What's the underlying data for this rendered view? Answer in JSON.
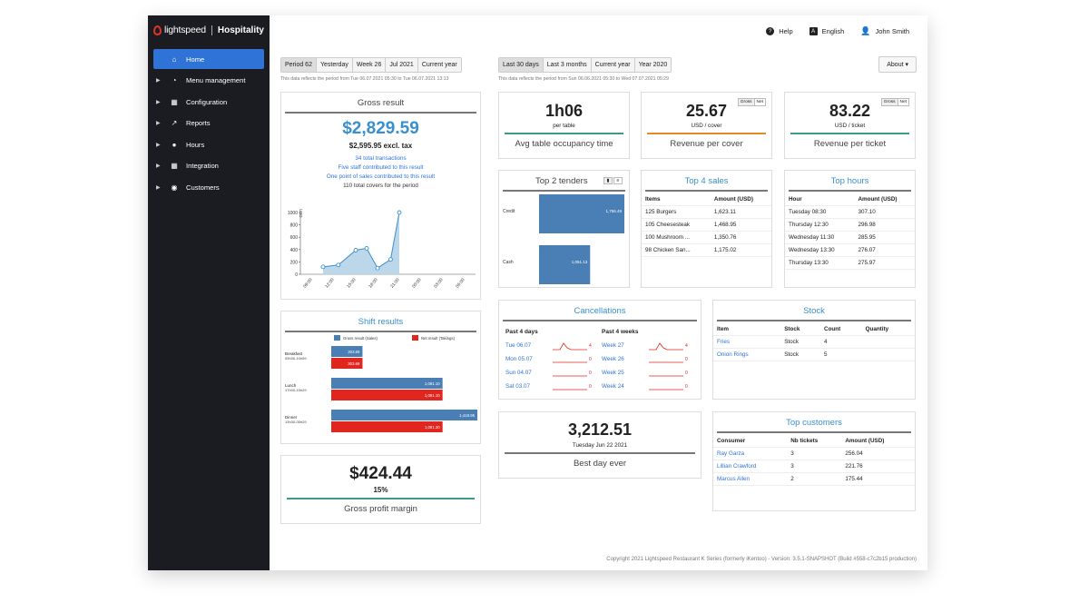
{
  "sidebar": {
    "brand": "lightspeed",
    "product": "Hospitality",
    "items": [
      {
        "label": "Home",
        "icon": "home-icon"
      },
      {
        "label": "Menu management",
        "icon": "pie-icon"
      },
      {
        "label": "Configuration",
        "icon": "grid-icon"
      },
      {
        "label": "Reports",
        "icon": "chart-icon"
      },
      {
        "label": "Hours",
        "icon": "clock-icon"
      },
      {
        "label": "Integration",
        "icon": "grid-icon"
      },
      {
        "label": "Customers",
        "icon": "user-circle-icon"
      }
    ]
  },
  "topbar": {
    "help": "Help",
    "language": "English",
    "user": "John Smith"
  },
  "left_periods": {
    "options": [
      "Period 62",
      "Yesterday",
      "Week 26",
      "Jul 2021",
      "Current year"
    ],
    "selected": "Period 62",
    "note": "This data reflects the period from Tue 06.07.2021 05:30 to Tue 06.07.2021 13:13"
  },
  "right_periods": {
    "options": [
      "Last 30 days",
      "Last 3 months",
      "Current year",
      "Year 2020"
    ],
    "selected": "Last 30 days",
    "note": "This data reflects the period from Sun 06.06.2021 05:30 to Wed 07.07.2021 05:29"
  },
  "about": "About ▾",
  "gross": {
    "title": "Gross result",
    "amount": "$2,829.59",
    "excl": "$2,595.95 excl. tax",
    "lines": [
      "34 total transactions",
      "Five staff contributed to this result",
      "One point of sales contributed to this result"
    ],
    "covers": "110 total covers for the period"
  },
  "chart_data": [
    {
      "type": "area",
      "ylabel": "USD",
      "ylim": [
        0,
        1000
      ],
      "yticks": [
        "1000",
        "800",
        "600",
        "400",
        "200",
        "0"
      ],
      "x": [
        "09:00",
        "12:00",
        "15:00",
        "18:00",
        "21:00",
        "00:00",
        "03:00",
        "06:00"
      ],
      "points": [
        [
          0.5,
          120
        ],
        [
          1.2,
          150
        ],
        [
          2.0,
          390
        ],
        [
          2.5,
          420
        ],
        [
          3.0,
          100
        ],
        [
          3.6,
          240
        ],
        [
          4.0,
          1000
        ]
      ]
    },
    {
      "type": "bar",
      "title": "Top 2 tenders",
      "categories": [
        "Credit",
        "Cash"
      ],
      "values": [
        1756.49,
        1051.13
      ],
      "labels": [
        "1,756.49",
        "1,051.13"
      ]
    },
    {
      "type": "bar",
      "title": "Shift results",
      "series": [
        {
          "name": "Gross result (Sales)",
          "values": [
            303.69,
            1081.1,
            1418.95
          ],
          "labels": [
            "303.69",
            "1,081.10",
            "1,418.95"
          ]
        },
        {
          "name": "Net result (Takings)",
          "values": [
            303.69,
            1081.1,
            1081.3
          ],
          "labels": [
            "303.69",
            "1,081.10",
            "1,081.30"
          ]
        }
      ],
      "categories": [
        {
          "name": "Breakfast",
          "time": "05h30-10h59"
        },
        {
          "name": "Lunch",
          "time": "17h00-15h29"
        },
        {
          "name": "Dinner",
          "time": "13h30-05h29"
        }
      ]
    }
  ],
  "margin": {
    "amount": "$424.44",
    "pct": "15%",
    "caption": "Gross profit margin"
  },
  "occupancy": {
    "value": "1h06",
    "unit": "per table",
    "caption": "Avg table occupancy time"
  },
  "cover": {
    "value": "25.67",
    "unit": "USD / cover",
    "caption": "Revenue per cover",
    "toggle": [
      "Gross",
      "Net"
    ]
  },
  "ticket": {
    "value": "83.22",
    "unit": "USD / ticket",
    "caption": "Revenue per ticket",
    "toggle": [
      "Gross",
      "Net"
    ]
  },
  "top_sales": {
    "title": "Top 4 sales",
    "headers": [
      "Items",
      "Amount (USD)"
    ],
    "rows": [
      [
        "125 Burgers",
        "1,623.11"
      ],
      [
        "105 Cheesesteak",
        "1,468.95"
      ],
      [
        "100 Mushroom ...",
        "1,350.76"
      ],
      [
        "98 Chicken San...",
        "1,175.02"
      ]
    ]
  },
  "top_hours": {
    "title": "Top hours",
    "headers": [
      "Hour",
      "Amount (USD)"
    ],
    "rows": [
      [
        "Tuesday 08:30",
        "307.10"
      ],
      [
        "Thursday 12:30",
        "296.98"
      ],
      [
        "Wednesday 11:30",
        "285.95"
      ],
      [
        "Wednesday 13:30",
        "276.07"
      ],
      [
        "Thursday 13:30",
        "275.97"
      ]
    ]
  },
  "cancellations": {
    "title": "Cancellations",
    "days_header": "Past 4 days",
    "weeks_header": "Past 4 weeks",
    "days": [
      [
        "Tue 06.07",
        "4"
      ],
      [
        "Mon 05.07",
        "0"
      ],
      [
        "Sun 04.07",
        "0"
      ],
      [
        "Sat 03.07",
        "0"
      ]
    ],
    "weeks": [
      [
        "Week 27",
        "4"
      ],
      [
        "Week 26",
        "0"
      ],
      [
        "Week 25",
        "0"
      ],
      [
        "Week 24",
        "0"
      ]
    ]
  },
  "stock": {
    "title": "Stock",
    "headers": [
      "Item",
      "Stock",
      "Count",
      "Quantity"
    ],
    "rows": [
      [
        "Fries",
        "Stock",
        "4",
        ""
      ],
      [
        "Onion Rings",
        "Stock",
        "5",
        ""
      ]
    ]
  },
  "best_day": {
    "value": "3,212.51",
    "date": "Tuesday Jun 22 2021",
    "caption": "Best day ever"
  },
  "top_customers": {
    "title": "Top customers",
    "headers": [
      "Consumer",
      "Nb tickets",
      "Amount (USD)"
    ],
    "rows": [
      [
        "Ray Garza",
        "3",
        "256.04"
      ],
      [
        "Lillian Crawford",
        "3",
        "221.76"
      ],
      [
        "Marcus Allen",
        "2",
        "175.44"
      ]
    ]
  },
  "footer": "Copyright 2021 Lightspeed Restaurant K Series (formerly iKentoo) - Version: 3.5.1-SNAPSHOT (Build #558-c7c2b15 production)",
  "colors": {
    "blue": "#3a8fcf",
    "bar_blue": "#4a7fb5",
    "bar_red": "#e0261f",
    "teal": "#3c9a8a",
    "orange": "#e08a2a",
    "sidebar": "#1b1c21",
    "active": "#2f73d7"
  }
}
